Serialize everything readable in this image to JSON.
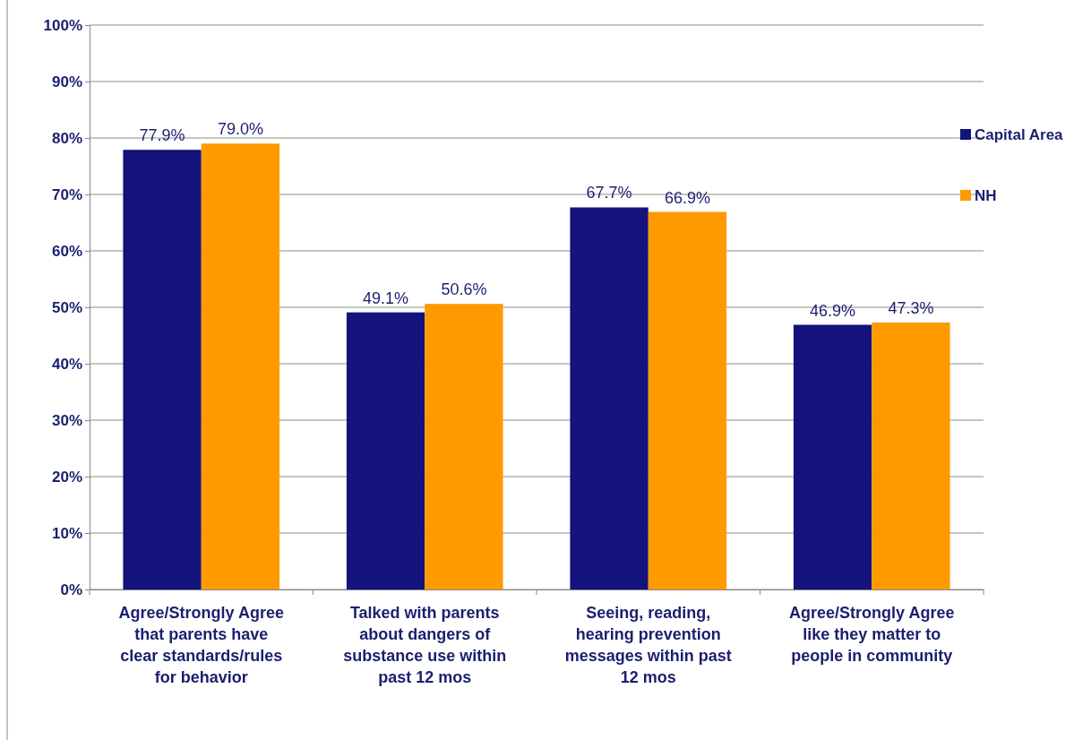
{
  "chart_data": {
    "type": "bar",
    "categories": [
      "Agree/Strongly Agree that parents have clear standards/rules for behavior",
      "Talked with parents about dangers of substance use within past 12 mos",
      "Seeing, reading, hearing prevention messages within past 12 mos",
      "Agree/Strongly Agree like they matter to people in community"
    ],
    "series": [
      {
        "name": "Capital Area",
        "color": "#13137b",
        "values": [
          77.9,
          49.1,
          67.7,
          46.9
        ],
        "value_labels": [
          "77.9%",
          "49.1%",
          "67.7%",
          "46.9%"
        ]
      },
      {
        "name": "NH",
        "color": "#ff9900",
        "values": [
          79.0,
          50.6,
          66.9,
          47.3
        ],
        "value_labels": [
          "79.0%",
          "50.6%",
          "66.9%",
          "47.3%"
        ]
      }
    ],
    "ylim": [
      0,
      100
    ],
    "yticks": [
      {
        "value": 0,
        "label": "0%"
      },
      {
        "value": 10,
        "label": "10%"
      },
      {
        "value": 20,
        "label": "20%"
      },
      {
        "value": 30,
        "label": "30%"
      },
      {
        "value": 40,
        "label": "40%"
      },
      {
        "value": 50,
        "label": "50%"
      },
      {
        "value": 60,
        "label": "60%"
      },
      {
        "value": 70,
        "label": "70%"
      },
      {
        "value": 80,
        "label": "80%"
      },
      {
        "value": 90,
        "label": "90%"
      },
      {
        "value": 100,
        "label": "100%"
      }
    ],
    "grid": "y",
    "legend": "right"
  }
}
